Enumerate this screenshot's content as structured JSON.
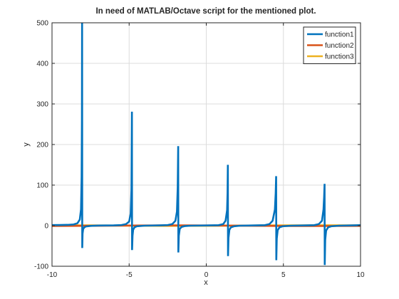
{
  "chart_data": {
    "type": "line",
    "title": "In need of MATLAB/Octave script for the mentioned plot.",
    "xlabel": "x",
    "ylabel": "y",
    "xlim": [
      -10,
      10
    ],
    "ylim": [
      -100,
      500
    ],
    "xticks": [
      -10,
      -5,
      0,
      5,
      10
    ],
    "yticks": [
      -100,
      0,
      100,
      200,
      300,
      400,
      500
    ],
    "grid": true,
    "legend_position": "top-right",
    "series": [
      {
        "name": "function1",
        "color": "#0072BD",
        "points": [
          [
            -10,
            1.5
          ],
          [
            -9.5,
            1.6
          ],
          [
            -9.0,
            2.0
          ],
          [
            -8.6,
            3.0
          ],
          [
            -8.35,
            6.0
          ],
          [
            -8.2,
            15
          ],
          [
            -8.12,
            40
          ],
          [
            -8.08,
            120
          ],
          [
            -8.06,
            260
          ],
          [
            -8.05,
            500
          ],
          [
            -8.04,
            -55
          ],
          [
            -8.02,
            -20
          ],
          [
            -7.98,
            -8
          ],
          [
            -7.9,
            -4
          ],
          [
            -7.8,
            -2
          ],
          [
            -7.5,
            -0.5
          ],
          [
            -7.0,
            0.3
          ],
          [
            -6.0,
            0.8
          ],
          [
            -5.5,
            1.5
          ],
          [
            -5.2,
            4
          ],
          [
            -5.0,
            10
          ],
          [
            -4.9,
            30
          ],
          [
            -4.85,
            90
          ],
          [
            -4.82,
            281
          ],
          [
            -4.81,
            -60
          ],
          [
            -4.78,
            -25
          ],
          [
            -4.74,
            -10
          ],
          [
            -4.65,
            -4
          ],
          [
            -4.5,
            -1.5
          ],
          [
            -4.0,
            0
          ],
          [
            -3.0,
            0.8
          ],
          [
            -2.5,
            1.5
          ],
          [
            -2.2,
            4
          ],
          [
            -2.0,
            12
          ],
          [
            -1.9,
            35
          ],
          [
            -1.85,
            95
          ],
          [
            -1.82,
            196
          ],
          [
            -1.81,
            -66
          ],
          [
            -1.78,
            -25
          ],
          [
            -1.72,
            -8
          ],
          [
            -1.6,
            -3
          ],
          [
            -1.4,
            -1
          ],
          [
            -1.0,
            0
          ],
          [
            0.0,
            0.6
          ],
          [
            0.8,
            1.2
          ],
          [
            1.1,
            4
          ],
          [
            1.25,
            12
          ],
          [
            1.35,
            38
          ],
          [
            1.38,
            80
          ],
          [
            1.4,
            150
          ],
          [
            1.41,
            -75
          ],
          [
            1.44,
            -30
          ],
          [
            1.5,
            -10
          ],
          [
            1.6,
            -4
          ],
          [
            1.8,
            -1.5
          ],
          [
            2.2,
            0
          ],
          [
            3.0,
            0.6
          ],
          [
            3.8,
            1.2
          ],
          [
            4.1,
            4
          ],
          [
            4.3,
            12
          ],
          [
            4.45,
            40
          ],
          [
            4.5,
            80
          ],
          [
            4.53,
            122
          ],
          [
            4.54,
            -85
          ],
          [
            4.57,
            -32
          ],
          [
            4.63,
            -11
          ],
          [
            4.75,
            -4
          ],
          [
            4.95,
            -1.5
          ],
          [
            5.5,
            0
          ],
          [
            6.3,
            0.6
          ],
          [
            7.0,
            1.2
          ],
          [
            7.3,
            4
          ],
          [
            7.5,
            12
          ],
          [
            7.6,
            40
          ],
          [
            7.64,
            70
          ],
          [
            7.67,
            103
          ],
          [
            7.68,
            -97
          ],
          [
            7.71,
            -35
          ],
          [
            7.77,
            -12
          ],
          [
            7.9,
            -4
          ],
          [
            8.1,
            -1.5
          ],
          [
            8.6,
            0
          ],
          [
            9.3,
            0.5
          ],
          [
            10,
            1.2
          ]
        ]
      },
      {
        "name": "function2",
        "color": "#D95319",
        "points": [
          [
            -10,
            -0.8
          ],
          [
            -7.5,
            -0.4
          ],
          [
            -5,
            0.4
          ],
          [
            -2.5,
            0.9
          ],
          [
            0,
            0.5
          ],
          [
            2.5,
            -0.2
          ],
          [
            5,
            -0.7
          ],
          [
            7.5,
            -0.9
          ],
          [
            10,
            -0.6
          ]
        ]
      },
      {
        "name": "function3",
        "color": "#EDB120",
        "points": [
          [
            -10,
            1.2
          ],
          [
            -7.5,
            0.8
          ],
          [
            -5,
            0.2
          ],
          [
            -2.5,
            -0.5
          ],
          [
            0,
            -0.3
          ],
          [
            2.5,
            0.3
          ],
          [
            5,
            0.9
          ],
          [
            7.5,
            1.1
          ],
          [
            10,
            0.7
          ]
        ]
      }
    ]
  }
}
